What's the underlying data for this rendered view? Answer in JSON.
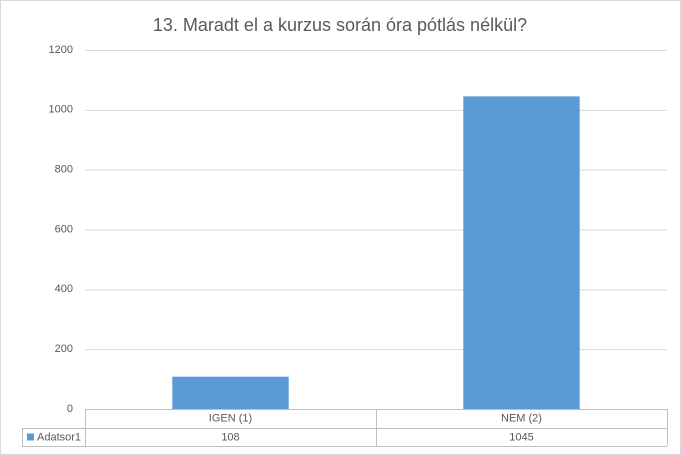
{
  "chart_data": {
    "type": "bar",
    "title": "13. Maradt el a kurzus során óra pótlás nélkül?",
    "categories": [
      "IGEN (1)",
      "NEM (2)"
    ],
    "series": [
      {
        "name": "Adatsor1",
        "color": "#5b9bd5",
        "values": [
          108,
          1045
        ]
      }
    ],
    "ylim": [
      0,
      1200
    ],
    "yticks": [
      0,
      200,
      400,
      600,
      800,
      1000,
      1200
    ],
    "grid": true
  }
}
